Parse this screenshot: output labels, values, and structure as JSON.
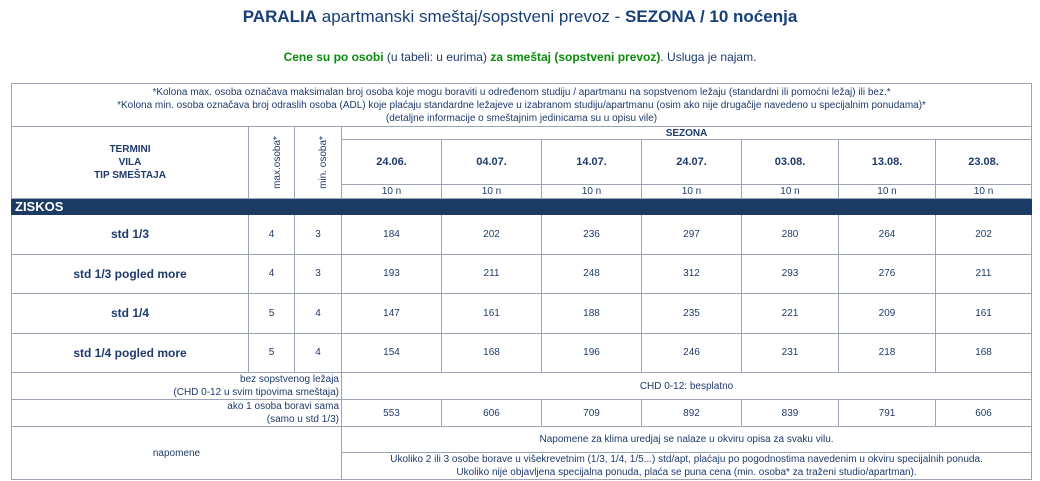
{
  "header": {
    "title_bold": "PARALIA",
    "title_rest": " apartmanski smeštaj/sopstveni prevoz - ",
    "title_season": "SEZONA / 10 noćenja",
    "sub_green_1": "Cene su po osobi",
    "sub_normal_1": " (u tabeli: u eurima) ",
    "sub_green_2": "za smeštaj (sopstveni prevoz)",
    "sub_normal_2": ". Usluga je najam."
  },
  "notes": [
    "*Kolona max. osoba označava maksimalan broj osoba koje mogu boraviti u određenom studiju / apartmanu na sopstvenom ležaju (standardni ili pomoćni ležaj) ili bez.*",
    "*Kolona min. osoba označava broj odraslih osoba (ADL) koje plaćaju standardne ležajeve u izabranom studiju/apartmanu (osim ako nije drugačije navedeno u specijalnim ponudama)*",
    "(detaljne informacije o smeštajnim jedinicama su u opisu vile)"
  ],
  "table_header": {
    "left": [
      "TERMINI",
      "VILA",
      "TIP SMEŠTAJA"
    ],
    "max_label": "max.osoba*",
    "min_label": "min. osoba*",
    "season": "SEZONA",
    "dates": [
      "24.06.",
      "04.07.",
      "14.07.",
      "24.07.",
      "03.08.",
      "13.08.",
      "23.08."
    ],
    "nights": [
      "10 n",
      "10 n",
      "10 n",
      "10 n",
      "10 n",
      "10 n",
      "10 n"
    ]
  },
  "section": "ZISKOS",
  "rooms": [
    {
      "name": "std 1/3",
      "max": "4",
      "min": "3",
      "prices": [
        "184",
        "202",
        "236",
        "297",
        "280",
        "264",
        "202"
      ]
    },
    {
      "name": "std 1/3 pogled more",
      "max": "4",
      "min": "3",
      "prices": [
        "193",
        "211",
        "248",
        "312",
        "293",
        "276",
        "211"
      ]
    },
    {
      "name": "std 1/4",
      "max": "5",
      "min": "4",
      "prices": [
        "147",
        "161",
        "188",
        "235",
        "221",
        "209",
        "161"
      ]
    },
    {
      "name": "std 1/4 pogled more",
      "max": "5",
      "min": "4",
      "prices": [
        "154",
        "168",
        "196",
        "246",
        "231",
        "218",
        "168"
      ]
    }
  ],
  "chd": {
    "label_1": "bez sopstvenog ležaja",
    "label_2": "(CHD 0-12 u svim tipovima smeštaja)",
    "value": "CHD 0-12: besplatno"
  },
  "single": {
    "label_1": "ako 1 osoba boravi sama",
    "label_2": "(samo u std 1/3)",
    "prices": [
      "553",
      "606",
      "709",
      "892",
      "839",
      "791",
      "606"
    ]
  },
  "remarks": {
    "label": "napomene",
    "line_1": "Napomene za klima uredjaj se nalaze u okviru opisa za svaku vilu.",
    "line_2": "Ukoliko 2 ili 3 osobe borave u višekrevetnim (1/3, 1/4, 1/5...) std/apt, plaćaju po pogodnostima navedenim u okviru specijalnih ponuda.",
    "line_3": "Ukoliko nije objavljena specijalna ponuda, plaća se puna cena (min. osoba* za traženi studio/apartman)."
  },
  "colors": {
    "title": "#173f78",
    "green": "#0b8a0b",
    "section_bg": "#1b3a64",
    "border": "#9aa4b2"
  }
}
